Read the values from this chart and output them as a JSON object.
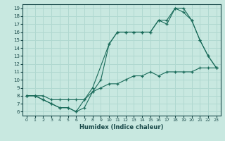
{
  "xlabel": "Humidex (Indice chaleur)",
  "ylabel": "",
  "bg_color": "#c8e8e0",
  "line_color": "#1a6b5a",
  "grid_color": "#b0d8d0",
  "xlim": [
    -0.5,
    23.5
  ],
  "ylim": [
    5.5,
    19.5
  ],
  "xticks": [
    0,
    1,
    2,
    3,
    4,
    5,
    6,
    7,
    8,
    9,
    10,
    11,
    12,
    13,
    14,
    15,
    16,
    17,
    18,
    19,
    20,
    21,
    22,
    23
  ],
  "yticks": [
    6,
    7,
    8,
    9,
    10,
    11,
    12,
    13,
    14,
    15,
    16,
    17,
    18,
    19
  ],
  "line1_x": [
    0,
    1,
    2,
    3,
    4,
    5,
    6,
    7,
    8,
    9,
    10,
    11,
    12,
    13,
    14,
    15,
    16,
    17,
    18,
    19,
    20,
    21,
    22,
    23
  ],
  "line1_y": [
    8,
    8,
    7.5,
    7,
    6.5,
    6.5,
    6,
    6.5,
    8.5,
    10.0,
    14.5,
    16,
    16,
    16,
    16,
    16.0,
    17.5,
    17.5,
    19,
    18.5,
    17.5,
    15,
    13,
    11.5
  ],
  "line2_x": [
    0,
    1,
    2,
    3,
    4,
    5,
    6,
    7,
    8,
    10,
    11,
    12,
    13,
    14,
    15,
    16,
    17,
    18,
    19,
    20,
    21,
    22,
    23
  ],
  "line2_y": [
    8,
    8,
    7.5,
    7,
    6.5,
    6.5,
    6,
    7.5,
    9.0,
    14.5,
    16,
    16,
    16,
    16,
    16.0,
    17.5,
    17.0,
    19,
    19,
    17.5,
    15,
    13,
    11.5
  ],
  "line3_x": [
    0,
    1,
    2,
    3,
    4,
    5,
    6,
    7,
    8,
    9,
    10,
    11,
    12,
    13,
    14,
    15,
    16,
    17,
    18,
    19,
    20,
    21,
    22,
    23
  ],
  "line3_y": [
    8,
    8,
    8.0,
    7.5,
    7.5,
    7.5,
    7.5,
    7.5,
    8.5,
    9.0,
    9.5,
    9.5,
    10,
    10.5,
    10.5,
    11.0,
    10.5,
    11,
    11,
    11,
    11,
    11.5,
    11.5,
    11.5
  ]
}
